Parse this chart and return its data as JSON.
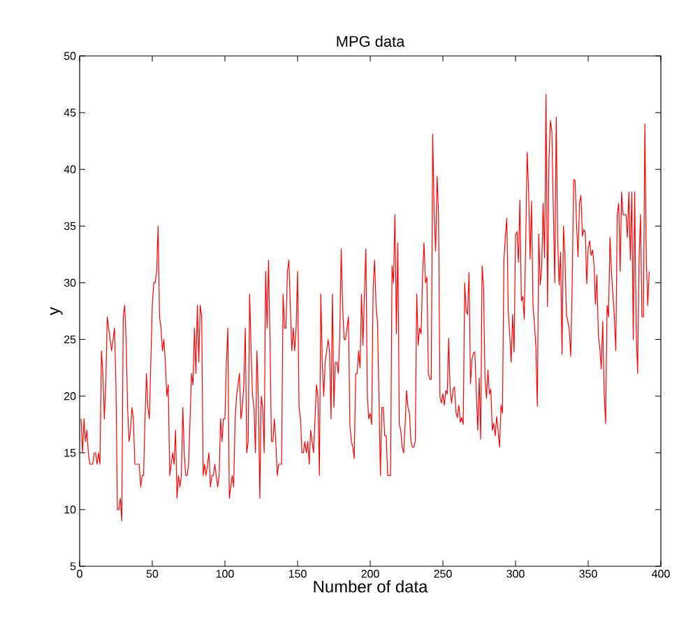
{
  "chart_data": {
    "type": "line",
    "title": "MPG data",
    "xlabel": "Number of data",
    "ylabel": "y",
    "xlim": [
      0,
      400
    ],
    "xticks": [
      0,
      50,
      100,
      150,
      200,
      250,
      300,
      350,
      400
    ],
    "ylim": [
      5,
      50
    ],
    "yticks": [
      5,
      10,
      15,
      20,
      25,
      30,
      35,
      40,
      45,
      50
    ],
    "series": [
      {
        "color": "#ff0000",
        "x": [
          1,
          2,
          3,
          4,
          5,
          6,
          7,
          8,
          9,
          10,
          11,
          12,
          13,
          14,
          15,
          16,
          17,
          18,
          19,
          20,
          21,
          22,
          23,
          24,
          25,
          26,
          27,
          28,
          29,
          30,
          31,
          32,
          33,
          34,
          35,
          36,
          37,
          38,
          39,
          40,
          41,
          42,
          43,
          44,
          45,
          46,
          47,
          48,
          49,
          50,
          51,
          52,
          53,
          54,
          55,
          56,
          57,
          58,
          59,
          60,
          61,
          62,
          63,
          64,
          65,
          66,
          67,
          68,
          69,
          70,
          71,
          72,
          73,
          74,
          75,
          76,
          77,
          78,
          79,
          80,
          81,
          82,
          83,
          84,
          85,
          86,
          87,
          88,
          89,
          90,
          91,
          92,
          93,
          94,
          95,
          96,
          97,
          98,
          99,
          100,
          101,
          102,
          103,
          104,
          105,
          106,
          107,
          108,
          109,
          110,
          111,
          112,
          113,
          114,
          115,
          116,
          117,
          118,
          119,
          120,
          121,
          122,
          123,
          124,
          125,
          126,
          127,
          128,
          129,
          130,
          131,
          132,
          133,
          134,
          135,
          136,
          137,
          138,
          139,
          140,
          141,
          142,
          143,
          144,
          145,
          146,
          147,
          148,
          149,
          150,
          151,
          152,
          153,
          154,
          155,
          156,
          157,
          158,
          159,
          160,
          161,
          162,
          163,
          164,
          165,
          166,
          167,
          168,
          169,
          170,
          171,
          172,
          173,
          174,
          175,
          176,
          177,
          178,
          179,
          180,
          181,
          182,
          183,
          184,
          185,
          186,
          187,
          188,
          189,
          190,
          191,
          192,
          193,
          194,
          195,
          196,
          197,
          198,
          199,
          200,
          201,
          202,
          203,
          204,
          205,
          206,
          207,
          208,
          209,
          210,
          211,
          212,
          213,
          214,
          215,
          216,
          217,
          218,
          219,
          220,
          221,
          222,
          223,
          224,
          225,
          226,
          227,
          228,
          229,
          230,
          231,
          232,
          233,
          234,
          235,
          236,
          237,
          238,
          239,
          240,
          241,
          242,
          243,
          244,
          245,
          246,
          247,
          248,
          249,
          250,
          251,
          252,
          253,
          254,
          255,
          256,
          257,
          258,
          259,
          260,
          261,
          262,
          263,
          264,
          265,
          266,
          267,
          268,
          269,
          270,
          271,
          272,
          273,
          274,
          275,
          276,
          277,
          278,
          279,
          280,
          281,
          282,
          283,
          284,
          285,
          286,
          287,
          288,
          289,
          290,
          291,
          292,
          293,
          294,
          295,
          296,
          297,
          298,
          299,
          300,
          301,
          302,
          303,
          304,
          305,
          306,
          307,
          308,
          309,
          310,
          311,
          312,
          313,
          314,
          315,
          316,
          317,
          318,
          319,
          320,
          321,
          322,
          323,
          324,
          325,
          326,
          327,
          328,
          329,
          330,
          331,
          332,
          333,
          334,
          335,
          336,
          337,
          338,
          339,
          340,
          341,
          342,
          343,
          344,
          345,
          346,
          347,
          348,
          349,
          350,
          351,
          352,
          353,
          354,
          355,
          356,
          357,
          358,
          359,
          360,
          361,
          362,
          363,
          364,
          365,
          366,
          367,
          368,
          369,
          370,
          371,
          372,
          373,
          374,
          375,
          376,
          377,
          378,
          379,
          380,
          381,
          382,
          383,
          384,
          385,
          386,
          387,
          388,
          389,
          390,
          391,
          392
        ],
        "values": [
          18,
          15,
          18,
          16,
          17,
          15,
          14,
          14,
          14,
          15,
          15,
          14,
          15,
          14,
          24,
          22,
          18,
          21,
          27,
          26,
          25,
          24,
          25,
          26,
          21,
          10,
          10,
          11,
          9,
          27,
          28,
          25,
          19,
          16,
          17,
          19,
          18,
          14,
          14,
          14,
          14,
          12,
          13,
          13,
          18,
          22,
          19,
          18,
          23,
          28,
          30,
          30,
          31,
          35,
          27,
          26,
          24,
          25,
          23,
          20,
          21,
          13,
          14,
          15,
          14,
          17,
          11,
          13,
          12,
          13,
          19,
          15,
          13,
          13,
          14,
          18,
          22,
          21,
          26,
          22,
          28,
          23,
          28,
          27,
          13,
          14,
          13,
          14,
          15,
          12,
          13,
          13,
          14,
          13,
          12,
          13,
          18,
          16,
          18,
          18,
          23,
          26,
          11,
          12,
          13,
          12,
          18,
          20,
          21,
          22,
          18,
          19,
          21,
          26,
          15,
          16,
          29,
          24,
          20,
          19,
          15,
          24,
          20,
          11,
          20,
          19,
          15,
          31,
          26,
          32,
          25,
          16,
          16,
          18,
          16,
          13,
          14,
          14,
          14,
          29,
          26,
          26,
          31,
          32,
          28,
          24,
          26,
          24,
          26,
          31,
          19,
          18,
          15,
          15,
          16,
          15,
          16,
          14,
          17,
          16,
          15,
          18,
          21,
          20,
          13,
          29,
          23,
          20,
          23,
          24,
          25,
          24,
          18,
          29,
          19,
          23,
          23,
          22,
          25,
          33,
          28,
          25,
          25,
          26,
          27,
          17.5,
          16,
          15.5,
          14.5,
          22,
          22,
          24,
          22.5,
          29,
          24.5,
          29,
          33,
          20,
          18,
          18.5,
          17.5,
          29.5,
          32,
          28,
          26.5,
          20,
          13,
          19,
          19,
          16.5,
          16.5,
          13,
          13,
          13,
          31.5,
          30,
          36,
          25.5,
          33.5,
          17.5,
          17,
          15.5,
          15,
          17.5,
          20.5,
          19,
          18.5,
          16,
          15.5,
          15.5,
          16,
          29,
          24.5,
          26,
          25.5,
          30.5,
          33.5,
          30,
          30.5,
          22,
          21.5,
          21.5,
          43.1,
          36.1,
          32.8,
          39.4,
          36.1,
          19.9,
          19.4,
          20.2,
          19.2,
          20.5,
          20.2,
          25.1,
          20.5,
          19.4,
          20.6,
          20.8,
          18.6,
          18.1,
          19.2,
          17.7,
          18.1,
          17.5,
          30,
          27.5,
          27.2,
          30.9,
          21.1,
          23.2,
          23.8,
          23.9,
          20.3,
          17,
          21.6,
          16.2,
          31.5,
          29.5,
          21.5,
          19.8,
          22.3,
          20.2,
          20.6,
          17,
          17.6,
          16.5,
          18.2,
          16.9,
          15.5,
          19.2,
          18.5,
          31.9,
          34.1,
          35.7,
          27.4,
          25.4,
          23,
          27.2,
          23.9,
          34.2,
          34.5,
          31.8,
          37.3,
          28.4,
          28.8,
          26.8,
          33.5,
          41.5,
          38.1,
          32.1,
          37.2,
          28,
          26.4,
          24.3,
          19.1,
          34.3,
          29.8,
          31.3,
          37,
          32.2,
          46.6,
          27.9,
          40.8,
          44.3,
          43.4,
          36.4,
          30,
          44.6,
          33.8,
          29.8,
          32.7,
          23.7,
          35,
          32.4,
          27.2,
          26.6,
          25.8,
          23.5,
          30,
          39.1,
          39,
          35.1,
          32.3,
          37,
          37.7,
          34.1,
          34.7,
          34.4,
          29.9,
          33,
          33.7,
          32.4,
          32.9,
          31.6,
          28.1,
          30.7,
          25.4,
          24.2,
          22.4,
          26.6,
          20.2,
          17.6,
          28,
          27,
          34,
          31,
          29,
          27,
          24,
          36,
          37,
          31,
          38,
          36,
          36,
          36,
          34,
          38,
          32,
          38,
          25,
          38,
          26,
          22,
          32,
          36,
          27,
          27,
          44,
          32,
          28,
          31
        ]
      }
    ]
  }
}
